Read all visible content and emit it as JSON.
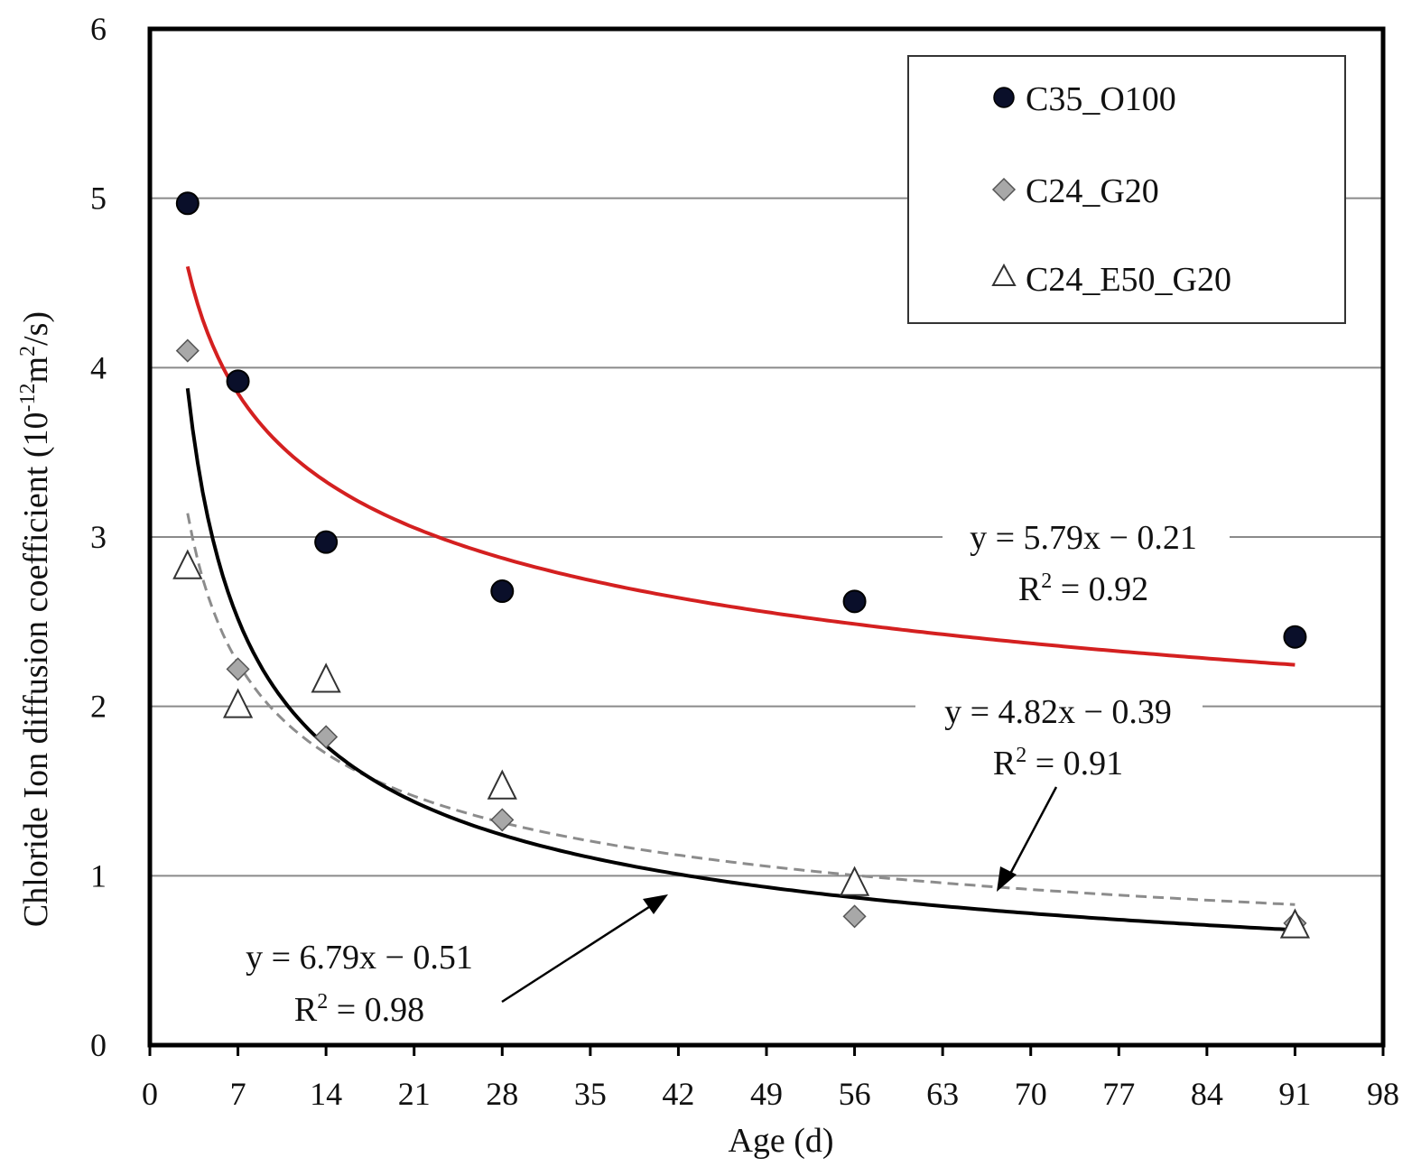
{
  "chart_data": {
    "type": "scatter",
    "xlabel": "Age (d)",
    "ylabel_main": "Chloride Ion diffusion coefficient (10",
    "ylabel_exp": "-12",
    "ylabel_mid": "m",
    "ylabel_exp2": "2",
    "ylabel_end": "/s)",
    "xlim": [
      0,
      98
    ],
    "ylim": [
      0,
      6
    ],
    "x_ticks": [
      0,
      7,
      14,
      21,
      28,
      35,
      42,
      49,
      56,
      63,
      70,
      77,
      84,
      91,
      98
    ],
    "y_ticks": [
      0,
      1,
      2,
      3,
      4,
      5,
      6
    ],
    "grid": "horizontal",
    "legend_position": "top-right",
    "series": [
      {
        "name": "C35_O100",
        "marker": "circle",
        "color": "#0a0f2a",
        "x": [
          3,
          7,
          14,
          28,
          56,
          91
        ],
        "y": [
          4.97,
          3.92,
          2.97,
          2.68,
          2.62,
          2.41
        ]
      },
      {
        "name": "C24_G20",
        "marker": "diamond",
        "color": "#a8a8a8",
        "x": [
          3,
          7,
          14,
          28,
          56,
          91
        ],
        "y": [
          4.1,
          2.22,
          1.82,
          1.33,
          0.76,
          0.72
        ]
      },
      {
        "name": "C24_E50_G20",
        "marker": "triangle",
        "color": "#ffffff",
        "x": [
          3,
          7,
          14,
          28,
          56,
          91
        ],
        "y": [
          2.82,
          2.0,
          2.15,
          1.52,
          0.95,
          0.7
        ]
      }
    ],
    "fits": [
      {
        "series": "C35_O100",
        "a": 5.79,
        "b": -0.21,
        "x_range": [
          3,
          91
        ],
        "color": "#d42020",
        "style": "solid",
        "equation": "y = 5.79x − 0.21",
        "r2_prefix": "R",
        "r2_suffix": " = 0.92"
      },
      {
        "series": "C24_G20",
        "a": 4.82,
        "b": -0.39,
        "x_range": [
          3,
          91
        ],
        "color": "#8c8c8c",
        "style": "dashed",
        "equation": "y = 4.82x − 0.39",
        "r2_prefix": "R",
        "r2_suffix": " = 0.91"
      },
      {
        "series": "C24_E50_G20",
        "a": 6.79,
        "b": -0.51,
        "x_range": [
          3,
          91
        ],
        "color": "#000000",
        "style": "solid",
        "equation": "y = 6.79x − 0.51",
        "r2_prefix": "R",
        "r2_suffix": " = 0.98"
      }
    ]
  }
}
